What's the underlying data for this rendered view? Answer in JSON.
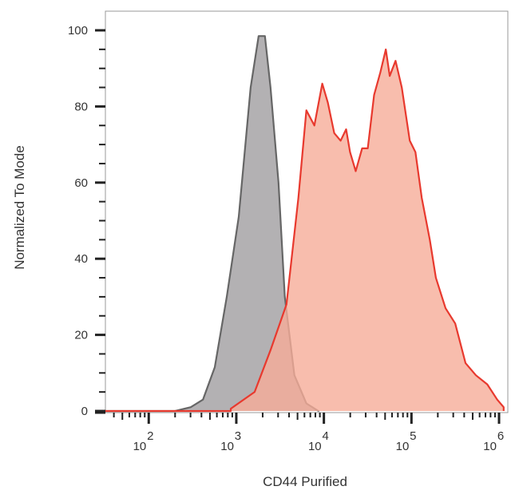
{
  "chart_data": {
    "type": "area",
    "title": "",
    "xlabel": "CD44 Purified",
    "ylabel": "Normalized To Mode",
    "xscale": "log",
    "xlim": [
      32,
      1260000
    ],
    "ylim": [
      0,
      105
    ],
    "grid": false,
    "y_ticks": [
      {
        "value": 0,
        "label": "0"
      },
      {
        "value": 20,
        "label": "20"
      },
      {
        "value": 40,
        "label": "40"
      },
      {
        "value": 60,
        "label": "60"
      },
      {
        "value": 80,
        "label": "80"
      },
      {
        "value": 100,
        "label": "100"
      }
    ],
    "x_ticks": [
      {
        "value": 100,
        "base": "10",
        "exp": "2"
      },
      {
        "value": 1000,
        "base": "10",
        "exp": "3"
      },
      {
        "value": 10000,
        "base": "10",
        "exp": "4"
      },
      {
        "value": 100000,
        "base": "10",
        "exp": "5"
      },
      {
        "value": 1000000,
        "base": "10",
        "exp": "6"
      }
    ],
    "series": [
      {
        "fill": "#b3b1b3",
        "stroke": "#666666",
        "x": [
          200,
          302,
          416,
          568,
          778,
          1065,
          1458,
          1797,
          2124,
          2458,
          3030,
          3580,
          4610,
          6310,
          8660
        ],
        "y": [
          0,
          1,
          3,
          11.5,
          30,
          51,
          85,
          98.5,
          98.5,
          85,
          60,
          30,
          9.4,
          2,
          0
        ]
      },
      {
        "fill": "#f6ad98",
        "stroke": "#e8392e",
        "x": [
          864,
          1620,
          2458,
          3740,
          5110,
          6310,
          7780,
          9590,
          11100,
          13130,
          15520,
          17960,
          19900,
          23100,
          27300,
          31700,
          37400,
          44200,
          51000,
          56500,
          65800,
          77600,
          95600,
          111000,
          131000,
          162000,
          190000,
          245000,
          316000,
          414000,
          544000,
          735000,
          953000,
          1130000
        ],
        "y": [
          0.6,
          5,
          16,
          28,
          56,
          79,
          75,
          86,
          81,
          73,
          71,
          74,
          68,
          63,
          69,
          69,
          83,
          89,
          95,
          88,
          92,
          85,
          71,
          68,
          56,
          45,
          35,
          27,
          23,
          12.6,
          9.4,
          7,
          3,
          1
        ]
      }
    ]
  }
}
